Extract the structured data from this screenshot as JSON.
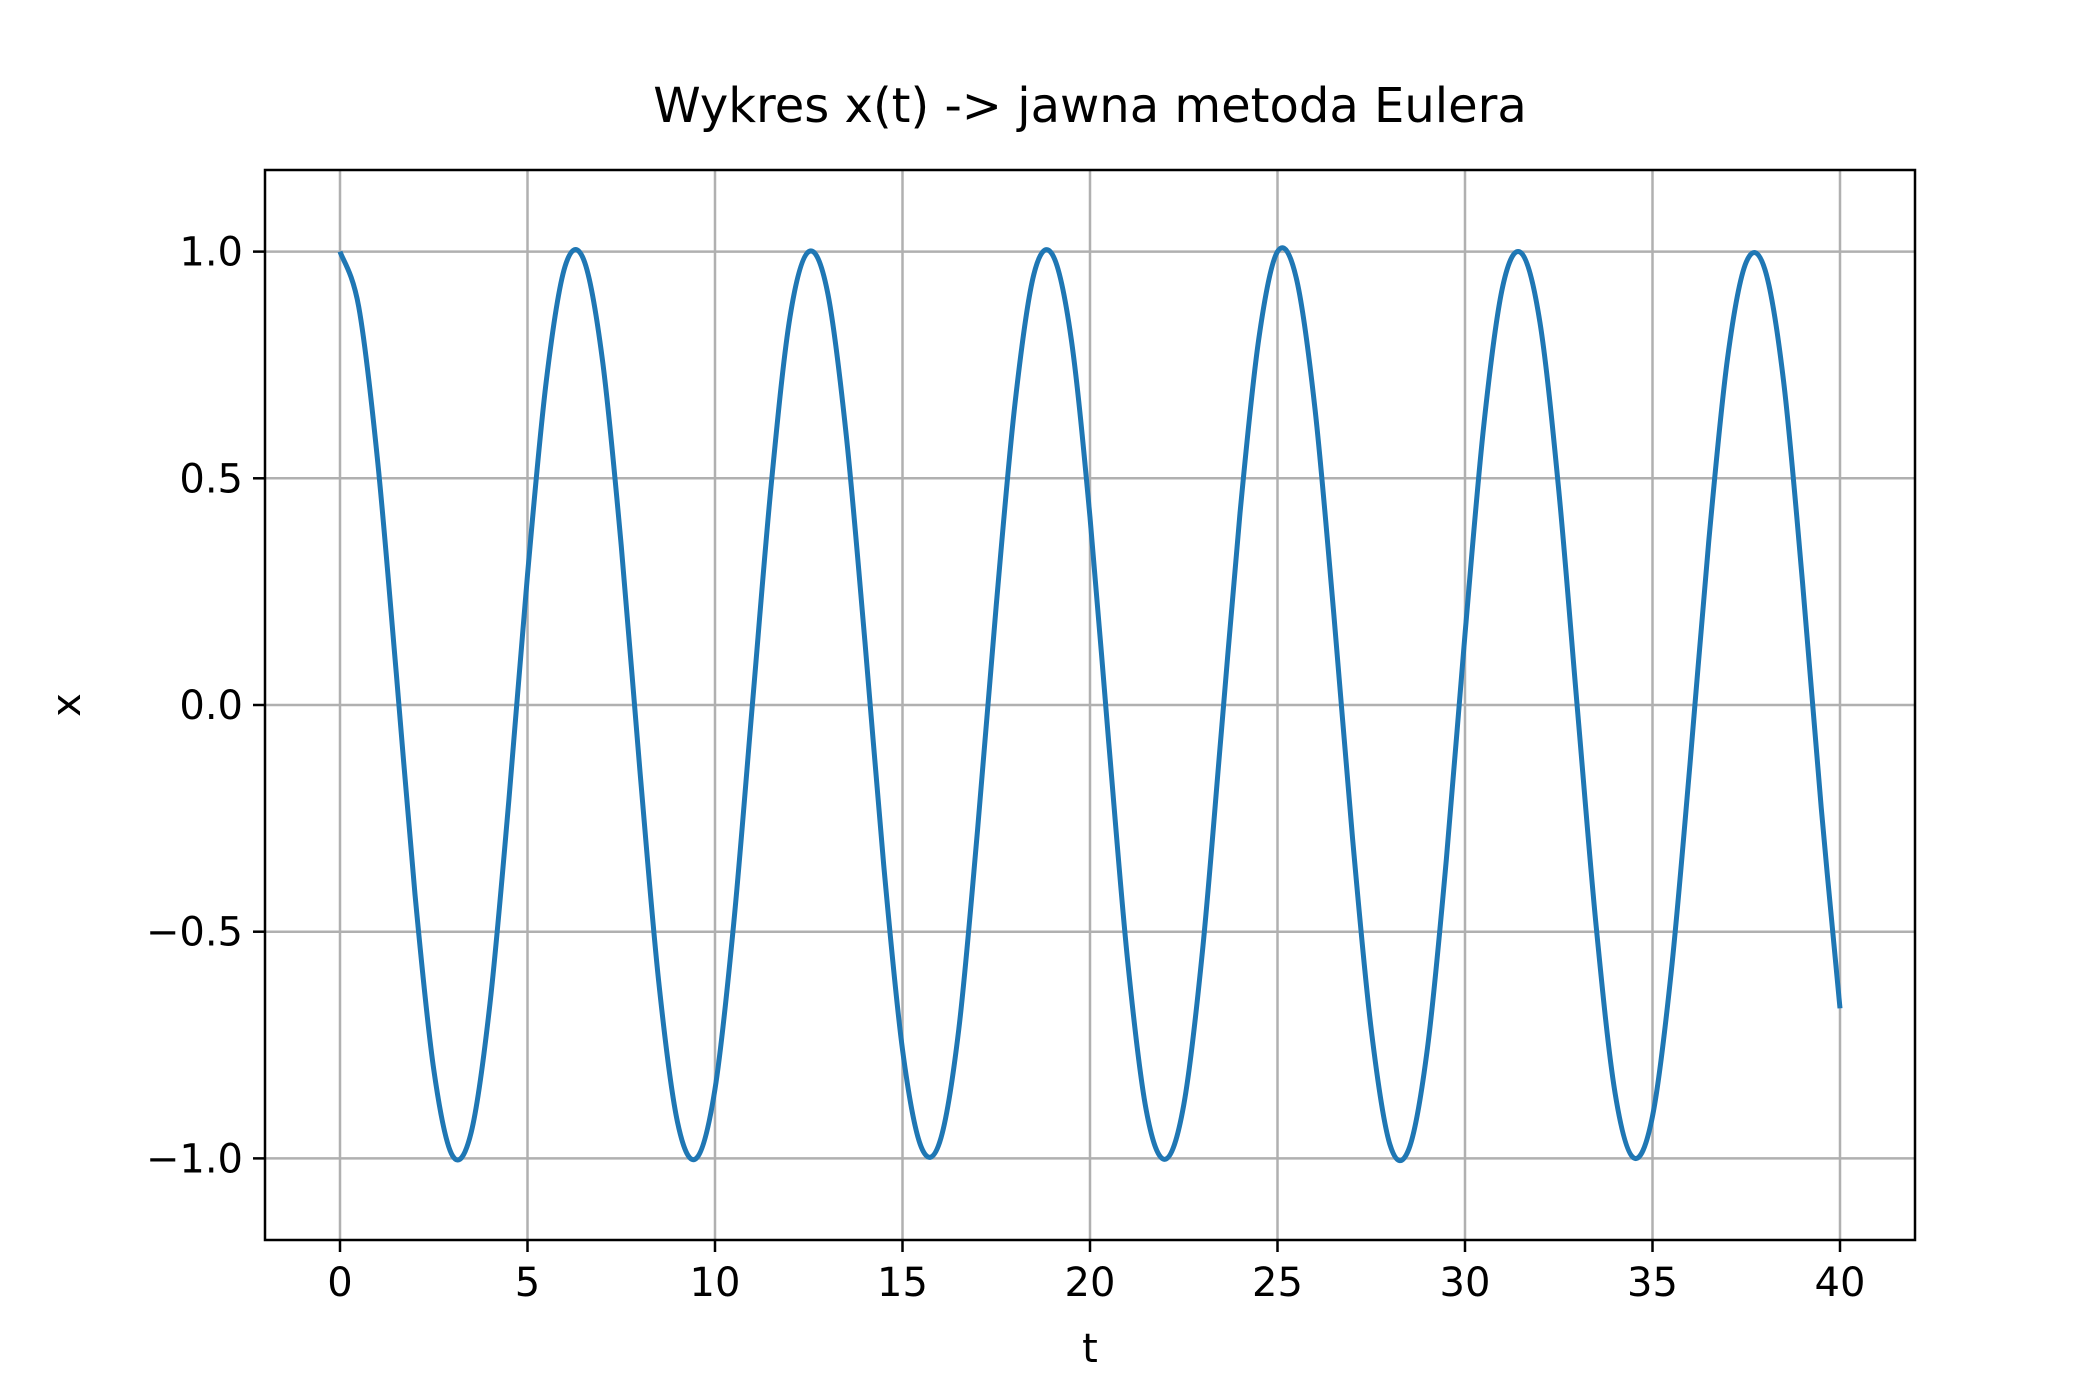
{
  "chart_data": {
    "type": "line",
    "title": "Wykres x(t) -> jawna metoda Eulera",
    "xlabel": "t",
    "ylabel": "x",
    "xlim": [
      -2,
      42
    ],
    "ylim": [
      -1.18,
      1.18
    ],
    "grid": true,
    "legend": "none",
    "x_ticks": [
      0,
      5,
      10,
      15,
      20,
      25,
      30,
      35,
      40
    ],
    "x_tick_labels": [
      "0",
      "5",
      "10",
      "15",
      "20",
      "25",
      "30",
      "35",
      "40"
    ],
    "y_ticks": [
      -1.0,
      -0.5,
      0.0,
      0.5,
      1.0
    ],
    "y_tick_labels": [
      "−1.0",
      "−0.5",
      "0.0",
      "0.5",
      "1.0"
    ],
    "colors": {
      "line": "#1f77b4",
      "grid": "#b0b0b0",
      "axes": "#000000"
    },
    "series": [
      {
        "x": [
          0,
          0.5,
          1,
          1.5,
          2,
          2.5,
          3,
          3.5,
          4,
          4.5,
          5,
          5.5,
          6,
          6.5,
          7,
          7.5,
          8,
          8.5,
          9,
          9.5,
          10,
          10.5,
          11,
          11.5,
          12,
          12.5,
          13,
          13.5,
          14,
          14.5,
          15,
          15.5,
          16,
          16.5,
          17,
          17.5,
          18,
          18.5,
          19,
          19.5,
          20,
          20.5,
          21,
          21.5,
          22,
          22.5,
          23,
          23.5,
          24,
          24.5,
          25,
          25.5,
          26,
          26.5,
          27,
          27.5,
          28,
          28.5,
          29,
          29.5,
          30,
          30.5,
          31,
          31.5,
          32,
          32.5,
          33,
          33.5,
          34,
          34.5,
          35,
          35.5,
          36,
          36.5,
          37,
          37.5,
          38,
          38.5,
          39,
          39.5,
          40
        ],
        "y": [
          1.0,
          0.878,
          0.541,
          0.071,
          -0.418,
          -0.804,
          -0.994,
          -0.942,
          -0.658,
          -0.213,
          0.287,
          0.714,
          0.967,
          0.982,
          0.76,
          0.351,
          -0.147,
          -0.611,
          -0.92,
          -1.0,
          -0.847,
          -0.481,
          0.004,
          0.487,
          0.856,
          1.0,
          0.911,
          0.595,
          0.138,
          -0.354,
          -0.76,
          -0.975,
          -0.962,
          -0.716,
          -0.277,
          0.22,
          0.665,
          0.949,
          0.993,
          0.807,
          0.414,
          -0.083,
          -0.561,
          -0.894,
          -1.002,
          -0.882,
          -0.542,
          -0.062,
          0.423,
          0.807,
          1.0,
          0.942,
          0.653,
          0.202,
          -0.293,
          -0.716,
          -0.97,
          -0.98,
          -0.756,
          -0.343,
          0.156,
          0.616,
          0.921,
          0.997,
          0.843,
          0.474,
          -0.011,
          -0.49,
          -0.855,
          -0.999,
          -0.907,
          -0.588,
          -0.13,
          0.361,
          0.764,
          0.977,
          0.96,
          0.711,
          0.271,
          -0.227,
          -0.669
        ]
      }
    ]
  }
}
